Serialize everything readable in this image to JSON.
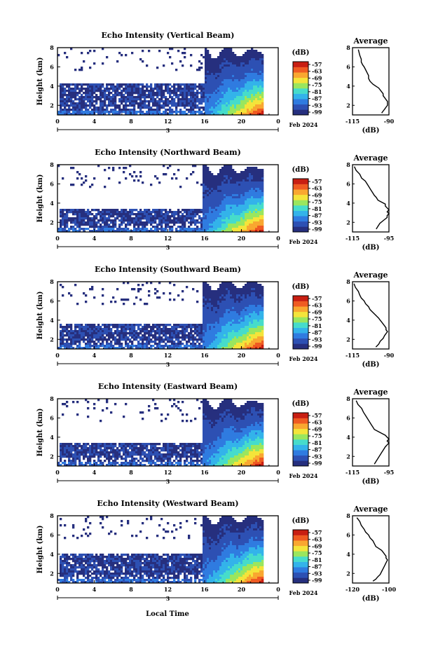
{
  "figure": {
    "xlabel": "Local Time",
    "date_label": "Feb 2024",
    "day_label": "3",
    "colorbar_unit": "(dB)",
    "colorbar_ticks": [
      "-57",
      "-63",
      "-69",
      "-75",
      "-81",
      "-87",
      "-93",
      "-99"
    ],
    "avg_title": "Average",
    "avg_xlabel": "(dB)",
    "colors": {
      "background": "#ffffff",
      "weak_echo": "#2b3589",
      "colormap": [
        "#262f7e",
        "#2d50b3",
        "#2f7be0",
        "#33b3ea",
        "#46dccb",
        "#9ae65e",
        "#f4e43a",
        "#f9a730",
        "#ef5b22",
        "#c81e12"
      ]
    }
  },
  "chart_data": [
    {
      "type": "heatmap",
      "title": "Echo Intensity (Vertical Beam)",
      "ylabel": "Height (km)",
      "xlabel": "Local Time",
      "x_ticks": [
        "0",
        "4",
        "8",
        "12",
        "16",
        "20",
        "0"
      ],
      "y_ticks": [
        "2",
        "4",
        "6",
        "8"
      ],
      "xlim": [
        0,
        24
      ],
      "ylim": [
        1,
        8
      ],
      "colorbar": {
        "label": "(dB)",
        "range": [
          -99,
          -57
        ]
      },
      "features": {
        "cloud_top_km": 4.2,
        "upper_echo_top_km": 7.6,
        "convective_start_h": 16.2,
        "max_near_surface_db": -57
      },
      "average_profile": {
        "title": "Average",
        "xlabel": "(dB)",
        "x_ticks": [
          "-115",
          "-90"
        ],
        "y_ticks": [
          "2",
          "4",
          "6",
          "8"
        ],
        "xlim": [
          -115,
          -90
        ],
        "ylim": [
          1,
          8
        ],
        "x": [
          -111,
          -110,
          -109,
          -109,
          -108,
          -107,
          -106,
          -105,
          -104,
          -104,
          -103,
          -101,
          -99,
          -97,
          -96,
          -95,
          -94,
          -94,
          -93,
          -92,
          -91,
          -91,
          -92,
          -93,
          -94,
          -95
        ],
        "y": [
          7.8,
          7.2,
          6.8,
          6.5,
          6.2,
          6.0,
          5.7,
          5.4,
          5.1,
          4.8,
          4.5,
          4.2,
          4.0,
          3.8,
          3.6,
          3.4,
          3.2,
          3.0,
          2.8,
          2.6,
          2.4,
          2.0,
          1.8,
          1.6,
          1.4,
          1.2
        ]
      }
    },
    {
      "type": "heatmap",
      "title": "Echo Intensity (Northward Beam)",
      "ylabel": "Height (km)",
      "xlabel": "Local Time",
      "x_ticks": [
        "0",
        "4",
        "8",
        "12",
        "16",
        "20",
        "0"
      ],
      "y_ticks": [
        "2",
        "4",
        "6",
        "8"
      ],
      "xlim": [
        0,
        24
      ],
      "ylim": [
        1,
        8
      ],
      "colorbar": {
        "label": "(dB)",
        "range": [
          -99,
          -57
        ]
      },
      "features": {
        "cloud_top_km": 3.4,
        "upper_echo_top_km": 7.6,
        "convective_start_h": 16.0,
        "max_near_surface_db": -57
      },
      "average_profile": {
        "title": "Average",
        "xlabel": "(dB)",
        "x_ticks": [
          "-115",
          "-95"
        ],
        "y_ticks": [
          "2",
          "4",
          "6",
          "8"
        ],
        "xlim": [
          -115,
          -95
        ],
        "ylim": [
          1,
          8
        ],
        "x": [
          -114,
          -113,
          -111,
          -110,
          -108,
          -107,
          -106,
          -105,
          -104,
          -103,
          -102,
          -101,
          -99,
          -97,
          -97,
          -96,
          -95,
          -96,
          -95,
          -96,
          -96,
          -98,
          -100,
          -101,
          -102
        ],
        "y": [
          7.8,
          7.4,
          7.0,
          6.6,
          6.3,
          6.0,
          5.7,
          5.4,
          5.1,
          4.8,
          4.6,
          4.3,
          4.1,
          3.9,
          3.7,
          3.5,
          3.3,
          3.1,
          2.9,
          2.7,
          2.5,
          2.2,
          1.9,
          1.6,
          1.3
        ]
      }
    },
    {
      "type": "heatmap",
      "title": "Echo Intensity (Southward Beam)",
      "ylabel": "Height (km)",
      "xlabel": "Local Time",
      "x_ticks": [
        "0",
        "4",
        "8",
        "12",
        "16",
        "20",
        "0"
      ],
      "y_ticks": [
        "2",
        "4",
        "6",
        "8"
      ],
      "xlim": [
        0,
        24
      ],
      "ylim": [
        1,
        8
      ],
      "colorbar": {
        "label": "(dB)",
        "range": [
          -99,
          -57
        ]
      },
      "features": {
        "cloud_top_km": 3.6,
        "upper_echo_top_km": 7.8,
        "convective_start_h": 16.0,
        "max_near_surface_db": -57
      },
      "average_profile": {
        "title": "Average",
        "xlabel": "(dB)",
        "x_ticks": [
          "-115",
          "-90"
        ],
        "y_ticks": [
          "2",
          "4",
          "6",
          "8"
        ],
        "xlim": [
          -115,
          -90
        ],
        "ylim": [
          1,
          8
        ],
        "x": [
          -114,
          -113,
          -111,
          -110,
          -109,
          -107,
          -106,
          -104,
          -103,
          -101,
          -99,
          -97,
          -96,
          -95,
          -94,
          -93,
          -92,
          -92,
          -91,
          -92,
          -93,
          -94,
          -96,
          -97,
          -99
        ],
        "y": [
          7.8,
          7.4,
          7.0,
          6.6,
          6.3,
          6.0,
          5.7,
          5.4,
          5.1,
          4.8,
          4.5,
          4.2,
          4.0,
          3.8,
          3.6,
          3.4,
          3.2,
          3.0,
          2.8,
          2.6,
          2.4,
          2.1,
          1.8,
          1.5,
          1.2
        ]
      }
    },
    {
      "type": "heatmap",
      "title": "Echo Intensity (Eastward Beam)",
      "ylabel": "Height (km)",
      "xlabel": "Local Time",
      "x_ticks": [
        "0",
        "4",
        "8",
        "12",
        "16",
        "20",
        "0"
      ],
      "y_ticks": [
        "2",
        "4",
        "6",
        "8"
      ],
      "xlim": [
        0,
        24
      ],
      "ylim": [
        1,
        8
      ],
      "colorbar": {
        "label": "(dB)",
        "range": [
          -99,
          -57
        ]
      },
      "features": {
        "cloud_top_km": 3.3,
        "upper_echo_top_km": 7.6,
        "convective_start_h": 16.0,
        "max_near_surface_db": -57
      },
      "average_profile": {
        "title": "Average",
        "xlabel": "(dB)",
        "x_ticks": [
          "-115",
          "-95"
        ],
        "y_ticks": [
          "2",
          "4",
          "6",
          "8"
        ],
        "xlim": [
          -115,
          -95
        ],
        "ylim": [
          1,
          8
        ],
        "x": [
          -113,
          -112,
          -110,
          -109,
          -108,
          -107,
          -106,
          -105,
          -104,
          -103,
          -101,
          -99,
          -97,
          -96,
          -95,
          -96,
          -95,
          -96,
          -97,
          -98,
          -99,
          -100,
          -101,
          -102,
          -103
        ],
        "y": [
          7.8,
          7.4,
          7.0,
          6.6,
          6.3,
          6.0,
          5.7,
          5.4,
          5.1,
          4.8,
          4.6,
          4.4,
          4.2,
          4.0,
          3.8,
          3.6,
          3.4,
          3.2,
          3.0,
          2.7,
          2.4,
          2.1,
          1.8,
          1.5,
          1.2
        ]
      }
    },
    {
      "type": "heatmap",
      "title": "Echo Intensity (Westward Beam)",
      "ylabel": "Height (km)",
      "xlabel": "Local Time",
      "x_ticks": [
        "0",
        "4",
        "8",
        "12",
        "16",
        "20",
        "0"
      ],
      "y_ticks": [
        "2",
        "4",
        "6",
        "8"
      ],
      "xlim": [
        0,
        24
      ],
      "ylim": [
        1,
        8
      ],
      "colorbar": {
        "label": "(dB)",
        "range": [
          -99,
          -57
        ]
      },
      "features": {
        "cloud_top_km": 4.1,
        "upper_echo_top_km": 7.8,
        "convective_start_h": 16.0,
        "max_near_surface_db": -57
      },
      "average_profile": {
        "title": "Average",
        "xlabel": "(dB)",
        "x_ticks": [
          "-120",
          "-100"
        ],
        "y_ticks": [
          "2",
          "4",
          "6",
          "8"
        ],
        "xlim": [
          -120,
          -95
        ],
        "ylim": [
          1,
          8
        ],
        "x": [
          -117,
          -115,
          -114,
          -112,
          -111,
          -109,
          -108,
          -106,
          -105,
          -104,
          -102,
          -100,
          -99,
          -98,
          -97,
          -97,
          -96,
          -97,
          -98,
          -99,
          -100,
          -101,
          -103,
          -104,
          -106
        ],
        "y": [
          7.8,
          7.4,
          7.0,
          6.6,
          6.3,
          6.0,
          5.7,
          5.4,
          5.1,
          4.8,
          4.6,
          4.4,
          4.2,
          4.0,
          3.8,
          3.6,
          3.4,
          3.1,
          2.8,
          2.5,
          2.2,
          1.9,
          1.6,
          1.4,
          1.2
        ]
      }
    }
  ]
}
